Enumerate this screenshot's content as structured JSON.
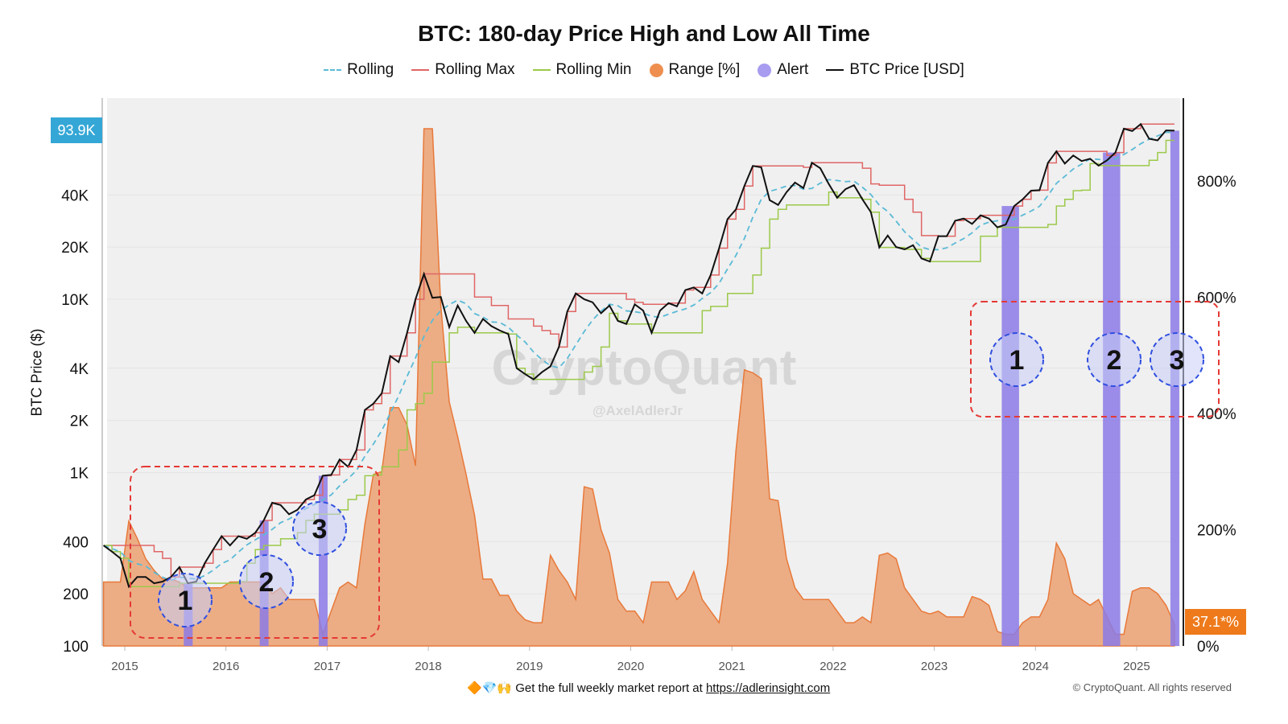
{
  "chart_data": {
    "type": "line",
    "title": "BTC: 180-day Price High and Low All Time",
    "ylabel_left": "BTC Price ($)",
    "y_left_scale": "log",
    "y_left_ticks": [
      "100",
      "200",
      "400",
      "1K",
      "2K",
      "4K",
      "10K",
      "20K",
      "40K"
    ],
    "y_left_tick_values": [
      100,
      200,
      400,
      1000,
      2000,
      4000,
      10000,
      20000,
      40000
    ],
    "y_right_ticks": [
      "0%",
      "200%",
      "400%",
      "600%",
      "800%"
    ],
    "y_right_tick_values": [
      0,
      200,
      400,
      600,
      800
    ],
    "x_ticks": [
      "2015",
      "2016",
      "2017",
      "2018",
      "2019",
      "2020",
      "2021",
      "2022",
      "2023",
      "2024",
      "2025"
    ],
    "current_price_label": "93.9K",
    "current_range_label": "37.1*%",
    "legend": [
      {
        "name": "Rolling",
        "style": "dash",
        "color": "#5bbad6"
      },
      {
        "name": "Rolling Max",
        "style": "line",
        "color": "#e06666"
      },
      {
        "name": "Rolling Min",
        "style": "line",
        "color": "#9cc94a"
      },
      {
        "name": "Range [%]",
        "style": "dot",
        "color": "#ee8f4f"
      },
      {
        "name": "Alert",
        "style": "dot",
        "color": "#a79cf0"
      },
      {
        "name": "BTC Price [USD]",
        "style": "line",
        "color": "#111111"
      }
    ],
    "legend_position": "top",
    "colors": {
      "price": "#111111",
      "rolling": "#5bbad6",
      "rolling_max": "#e06666",
      "rolling_min": "#9cc94a",
      "range_fill": "#eba97e",
      "range_stroke": "#e8793a",
      "alert": "#8b7ae6",
      "plot_bg": "#f0f0f0",
      "annotation_box": "#e53935",
      "annotation_circle": "#2f4fe0"
    },
    "dates": [
      "2014-10",
      "2014-11",
      "2014-12",
      "2015-01",
      "2015-02",
      "2015-03",
      "2015-04",
      "2015-05",
      "2015-06",
      "2015-07",
      "2015-08",
      "2015-09",
      "2015-10",
      "2015-11",
      "2015-12",
      "2016-01",
      "2016-02",
      "2016-03",
      "2016-04",
      "2016-05",
      "2016-06",
      "2016-07",
      "2016-08",
      "2016-09",
      "2016-10",
      "2016-11",
      "2016-12",
      "2017-01",
      "2017-02",
      "2017-03",
      "2017-04",
      "2017-05",
      "2017-06",
      "2017-07",
      "2017-08",
      "2017-09",
      "2017-10",
      "2017-11",
      "2017-12",
      "2018-01",
      "2018-02",
      "2018-03",
      "2018-04",
      "2018-05",
      "2018-06",
      "2018-07",
      "2018-08",
      "2018-09",
      "2018-10",
      "2018-11",
      "2018-12",
      "2019-01",
      "2019-02",
      "2019-03",
      "2019-04",
      "2019-05",
      "2019-06",
      "2019-07",
      "2019-08",
      "2019-09",
      "2019-10",
      "2019-11",
      "2019-12",
      "2020-01",
      "2020-02",
      "2020-03",
      "2020-04",
      "2020-05",
      "2020-06",
      "2020-07",
      "2020-08",
      "2020-09",
      "2020-10",
      "2020-11",
      "2020-12",
      "2021-01",
      "2021-02",
      "2021-03",
      "2021-04",
      "2021-05",
      "2021-06",
      "2021-07",
      "2021-08",
      "2021-09",
      "2021-10",
      "2021-11",
      "2021-12",
      "2022-01",
      "2022-02",
      "2022-03",
      "2022-04",
      "2022-05",
      "2022-06",
      "2022-07",
      "2022-08",
      "2022-09",
      "2022-10",
      "2022-11",
      "2022-12",
      "2023-01",
      "2023-02",
      "2023-03",
      "2023-04",
      "2023-05",
      "2023-06",
      "2023-07",
      "2023-08",
      "2023-09",
      "2023-10",
      "2023-11",
      "2023-12",
      "2024-01",
      "2024-02",
      "2024-03",
      "2024-04",
      "2024-05",
      "2024-06",
      "2024-07",
      "2024-08",
      "2024-09",
      "2024-10",
      "2024-11",
      "2024-12",
      "2025-01",
      "2025-02",
      "2025-03",
      "2025-04",
      "2025-05"
    ],
    "btc_price": [
      380,
      350,
      320,
      220,
      250,
      250,
      230,
      235,
      250,
      285,
      230,
      235,
      300,
      360,
      430,
      380,
      430,
      415,
      450,
      530,
      670,
      650,
      575,
      610,
      700,
      740,
      960,
      970,
      1190,
      1080,
      1350,
      2300,
      2500,
      2870,
      4700,
      4340,
      6400,
      10000,
      14000,
      10200,
      10300,
      6900,
      9200,
      7500,
      6400,
      7700,
      7000,
      6600,
      6300,
      4000,
      3700,
      3450,
      3800,
      4100,
      5300,
      8500,
      10800,
      10000,
      9600,
      8300,
      9200,
      7500,
      7200,
      9350,
      8600,
      6400,
      8600,
      9500,
      9100,
      11300,
      11700,
      10800,
      13800,
      19700,
      29000,
      33000,
      45000,
      58800,
      57700,
      37300,
      35000,
      41500,
      47100,
      43800,
      61300,
      57000,
      46300,
      38500,
      43200,
      45500,
      37700,
      31800,
      19900,
      23300,
      20000,
      19400,
      20500,
      17200,
      16500,
      23100,
      23100,
      28400,
      29200,
      27200,
      30500,
      29200,
      26000,
      27000,
      34500,
      37700,
      42300,
      42600,
      61200,
      71300,
      60600,
      67500,
      62700,
      64600,
      59000,
      63300,
      70200,
      96400,
      93400,
      102400,
      84300,
      82500,
      94200,
      93900
    ],
    "range_pct": [
      110,
      110,
      110,
      215,
      185,
      150,
      130,
      115,
      115,
      110,
      100,
      100,
      100,
      100,
      100,
      110,
      110,
      110,
      110,
      110,
      90,
      100,
      80,
      80,
      80,
      80,
      20,
      60,
      100,
      110,
      100,
      210,
      295,
      300,
      410,
      410,
      380,
      310,
      890,
      890,
      585,
      420,
      360,
      295,
      225,
      115,
      115,
      87,
      87,
      60,
      45,
      40,
      40,
      156,
      130,
      110,
      80,
      274,
      270,
      200,
      160,
      80,
      60,
      60,
      40,
      110,
      110,
      110,
      80,
      95,
      128,
      80,
      60,
      40,
      142,
      336,
      475,
      470,
      460,
      253,
      250,
      150,
      100,
      80,
      80,
      80,
      80,
      60,
      40,
      40,
      50,
      40,
      156,
      160,
      150,
      100,
      80,
      60,
      55,
      60,
      50,
      50,
      50,
      85,
      80,
      70,
      25,
      20,
      20,
      40,
      50,
      50,
      80,
      177,
      150,
      90,
      80,
      70,
      80,
      50,
      20,
      20,
      94,
      100,
      100,
      90,
      70,
      37.1
    ],
    "alerts": [
      {
        "start": "2015-08",
        "end": "2015-08",
        "label": "1"
      },
      {
        "start": "2016-05",
        "end": "2016-05",
        "label": "2"
      },
      {
        "start": "2016-12",
        "end": "2016-12",
        "label": "3"
      },
      {
        "start": "2023-09",
        "end": "2023-10",
        "label": "1"
      },
      {
        "start": "2024-09",
        "end": "2024-10",
        "label": "2"
      },
      {
        "start": "2025-05",
        "end": "2025-05",
        "label": "3"
      }
    ]
  },
  "watermark": {
    "brand": "CryptoQuant",
    "author": "@AxelAdlerJr"
  },
  "footer": {
    "emoji": "🔶💎🙌",
    "text": "Get the full weekly market report at ",
    "link": "https://adlerinsight.com"
  },
  "copyright": "© CryptoQuant. All rights reserved"
}
